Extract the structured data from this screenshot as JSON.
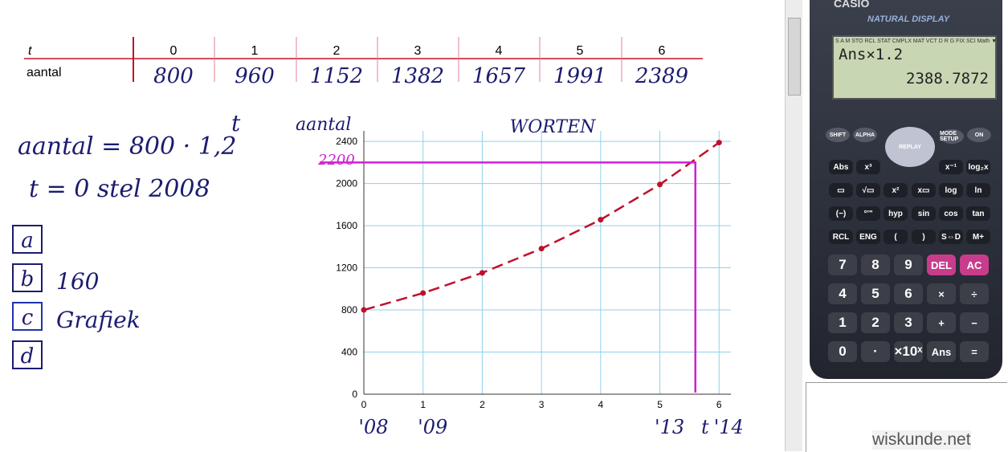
{
  "table": {
    "header": [
      "t",
      "0",
      "1",
      "2",
      "3",
      "4",
      "5",
      "6"
    ],
    "row": [
      "aantal",
      "800",
      "960",
      "1152",
      "1382",
      "1657",
      "1991",
      "2389"
    ]
  },
  "notes": {
    "formula": "aantal = 800 · 1,2",
    "exponent": "t",
    "start": "t = 0 stel 2008",
    "items": [
      {
        "label": "a"
      },
      {
        "label": "b",
        "text": "160"
      },
      {
        "label": "c",
        "text": "Grafiek"
      },
      {
        "label": "d"
      }
    ]
  },
  "graph": {
    "ylabel": "aantal",
    "title": "WORTEN",
    "xlim": [
      0,
      6.2
    ],
    "ylim": [
      0,
      2500
    ],
    "xticks": [
      0,
      1,
      2,
      3,
      4,
      5,
      6
    ],
    "yticks": [
      0,
      400,
      800,
      1200,
      1600,
      2000,
      2400
    ],
    "x": [
      0,
      1,
      2,
      3,
      4,
      5,
      6
    ],
    "values": [
      800,
      960,
      1152,
      1382,
      1657,
      1991,
      2389
    ],
    "color": "#c0102a",
    "reading": {
      "x": 5.6,
      "y": 2200,
      "label": "2200",
      "color": "#d020d0"
    },
    "year_labels": [
      {
        "x": 0,
        "label": "'08"
      },
      {
        "x": 1,
        "label": "'09"
      },
      {
        "x": 5,
        "label": "'13"
      },
      {
        "x": 5.6,
        "label": "t"
      },
      {
        "x": 6,
        "label": "'14"
      }
    ]
  },
  "calculator": {
    "brand": "CASIO",
    "model": "NATURAL DISPLAY",
    "status": "S A M STO RCL STAT CMPLX MAT VCT D R G FIX SCI Math ▼▲ Disp",
    "input": "Ans×1.2",
    "result": "2388.7872",
    "top_keys": [
      "SHIFT",
      "ALPHA",
      "REPLAY",
      "MODE SETUP",
      "ON"
    ],
    "function_keys": [
      [
        "Abs",
        "x³",
        "",
        "x⁻¹",
        "log₂x"
      ],
      [
        "▭",
        "√▭",
        "x²",
        "x▭",
        "log",
        "ln"
      ],
      [
        "(−)",
        "°'\"",
        "hyp",
        "sin",
        "cos",
        "tan"
      ],
      [
        "RCL",
        "ENG",
        "(",
        ")",
        "S⇔D",
        "M+"
      ]
    ],
    "number_keys": [
      [
        "7",
        "8",
        "9",
        "DEL",
        "AC"
      ],
      [
        "4",
        "5",
        "6",
        "×",
        "÷"
      ],
      [
        "1",
        "2",
        "3",
        "+",
        "−"
      ],
      [
        "0",
        "·",
        "×10ˣ",
        "Ans",
        "="
      ]
    ]
  },
  "watermark": "wiskunde.net"
}
